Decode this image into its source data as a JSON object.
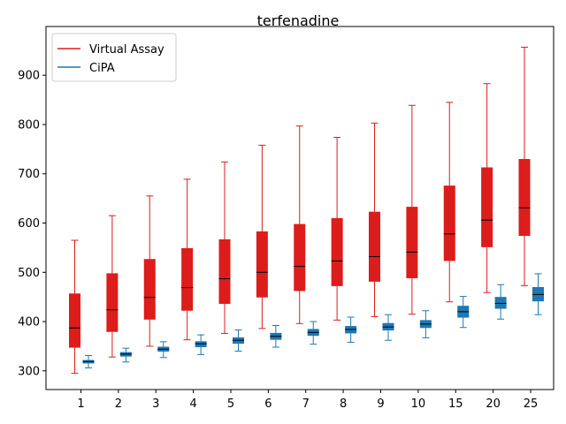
{
  "chart_data": {
    "type": "box",
    "title": "terfenadine",
    "xlabel": "",
    "ylabel": "",
    "categories": [
      "1",
      "2",
      "3",
      "4",
      "5",
      "6",
      "7",
      "8",
      "9",
      "10",
      "15",
      "20",
      "25"
    ],
    "ylim": [
      262,
      999
    ],
    "yticks": [
      300,
      400,
      500,
      600,
      700,
      800,
      900
    ],
    "grid": false,
    "legend_position": "upper left",
    "series": [
      {
        "name": "Virtual Assay",
        "color": "#dd1c1c",
        "boxes": [
          {
            "whislo": 295,
            "q1": 347,
            "med": 387,
            "q3": 457,
            "whishi": 565
          },
          {
            "whislo": 328,
            "q1": 379,
            "med": 424,
            "q3": 498,
            "whishi": 615
          },
          {
            "whislo": 350,
            "q1": 404,
            "med": 449,
            "q3": 527,
            "whishi": 655
          },
          {
            "whislo": 363,
            "q1": 422,
            "med": 469,
            "q3": 549,
            "whishi": 689
          },
          {
            "whislo": 376,
            "q1": 436,
            "med": 487,
            "q3": 567,
            "whishi": 724
          },
          {
            "whislo": 386,
            "q1": 449,
            "med": 500,
            "q3": 583,
            "whishi": 758
          },
          {
            "whislo": 396,
            "q1": 462,
            "med": 512,
            "q3": 598,
            "whishi": 797
          },
          {
            "whislo": 403,
            "q1": 472,
            "med": 523,
            "q3": 610,
            "whishi": 774
          },
          {
            "whislo": 410,
            "q1": 481,
            "med": 532,
            "q3": 623,
            "whishi": 803
          },
          {
            "whislo": 415,
            "q1": 488,
            "med": 541,
            "q3": 633,
            "whishi": 839
          },
          {
            "whislo": 440,
            "q1": 523,
            "med": 578,
            "q3": 676,
            "whishi": 845
          },
          {
            "whislo": 459,
            "q1": 551,
            "med": 606,
            "q3": 713,
            "whishi": 883
          },
          {
            "whislo": 473,
            "q1": 574,
            "med": 631,
            "q3": 730,
            "whishi": 957
          }
        ]
      },
      {
        "name": "CiPA",
        "color": "#1f77b4",
        "boxes": [
          {
            "whislo": 306,
            "q1": 315,
            "med": 319,
            "q3": 322,
            "whishi": 331
          },
          {
            "whislo": 318,
            "q1": 329,
            "med": 334,
            "q3": 338,
            "whishi": 346
          },
          {
            "whislo": 327,
            "q1": 339,
            "med": 344,
            "q3": 349,
            "whishi": 359
          },
          {
            "whislo": 333,
            "q1": 348,
            "med": 355,
            "q3": 360,
            "whishi": 373
          },
          {
            "whislo": 340,
            "q1": 355,
            "med": 362,
            "q3": 368,
            "whishi": 383
          },
          {
            "whislo": 348,
            "q1": 363,
            "med": 370,
            "q3": 377,
            "whishi": 392
          },
          {
            "whislo": 354,
            "q1": 371,
            "med": 378,
            "q3": 385,
            "whishi": 400
          },
          {
            "whislo": 358,
            "q1": 376,
            "med": 384,
            "q3": 391,
            "whishi": 409
          },
          {
            "whislo": 362,
            "q1": 382,
            "med": 389,
            "q3": 397,
            "whishi": 414
          },
          {
            "whislo": 367,
            "q1": 387,
            "med": 395,
            "q3": 403,
            "whishi": 422
          },
          {
            "whislo": 388,
            "q1": 408,
            "med": 420,
            "q3": 432,
            "whishi": 451
          },
          {
            "whislo": 405,
            "q1": 426,
            "med": 437,
            "q3": 450,
            "whishi": 475
          },
          {
            "whislo": 414,
            "q1": 441,
            "med": 455,
            "q3": 470,
            "whishi": 497
          }
        ]
      }
    ]
  }
}
